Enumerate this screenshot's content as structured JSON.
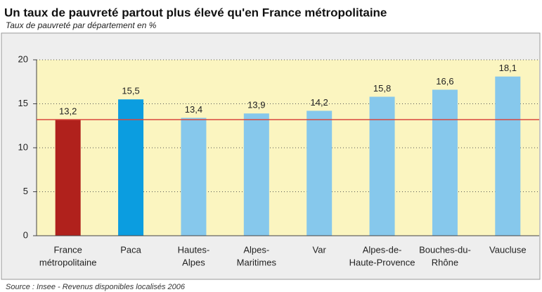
{
  "chart_data": {
    "type": "bar",
    "title": "Un taux de pauvreté partout plus élevé qu'en France métropolitaine",
    "subtitle": "Taux de pauvreté par département en %",
    "source": "Source : Insee - Revenus disponibles localisés 2006",
    "categories": [
      [
        "France",
        "métropolitaine"
      ],
      [
        "Paca"
      ],
      [
        "Hautes-",
        "Alpes"
      ],
      [
        "Alpes-",
        "Maritimes"
      ],
      [
        "Var"
      ],
      [
        "Alpes-de-",
        "Haute-Provence"
      ],
      [
        "Bouches-du-",
        "Rhône"
      ],
      [
        "Vaucluse"
      ]
    ],
    "values": [
      13.2,
      15.5,
      13.4,
      13.9,
      14.2,
      15.8,
      16.6,
      18.1
    ],
    "value_labels": [
      "13,2",
      "15,5",
      "13,4",
      "13,9",
      "14,2",
      "15,8",
      "16,6",
      "18,1"
    ],
    "colors": [
      "#b0211c",
      "#0b9de0",
      "#86c8ec",
      "#86c8ec",
      "#86c8ec",
      "#86c8ec",
      "#86c8ec",
      "#86c8ec"
    ],
    "reference_line": {
      "value": 13.2,
      "color": "#d9473e"
    },
    "ylim": [
      0,
      20
    ],
    "yticks": [
      0,
      5,
      10,
      15,
      20
    ],
    "grid": true
  }
}
